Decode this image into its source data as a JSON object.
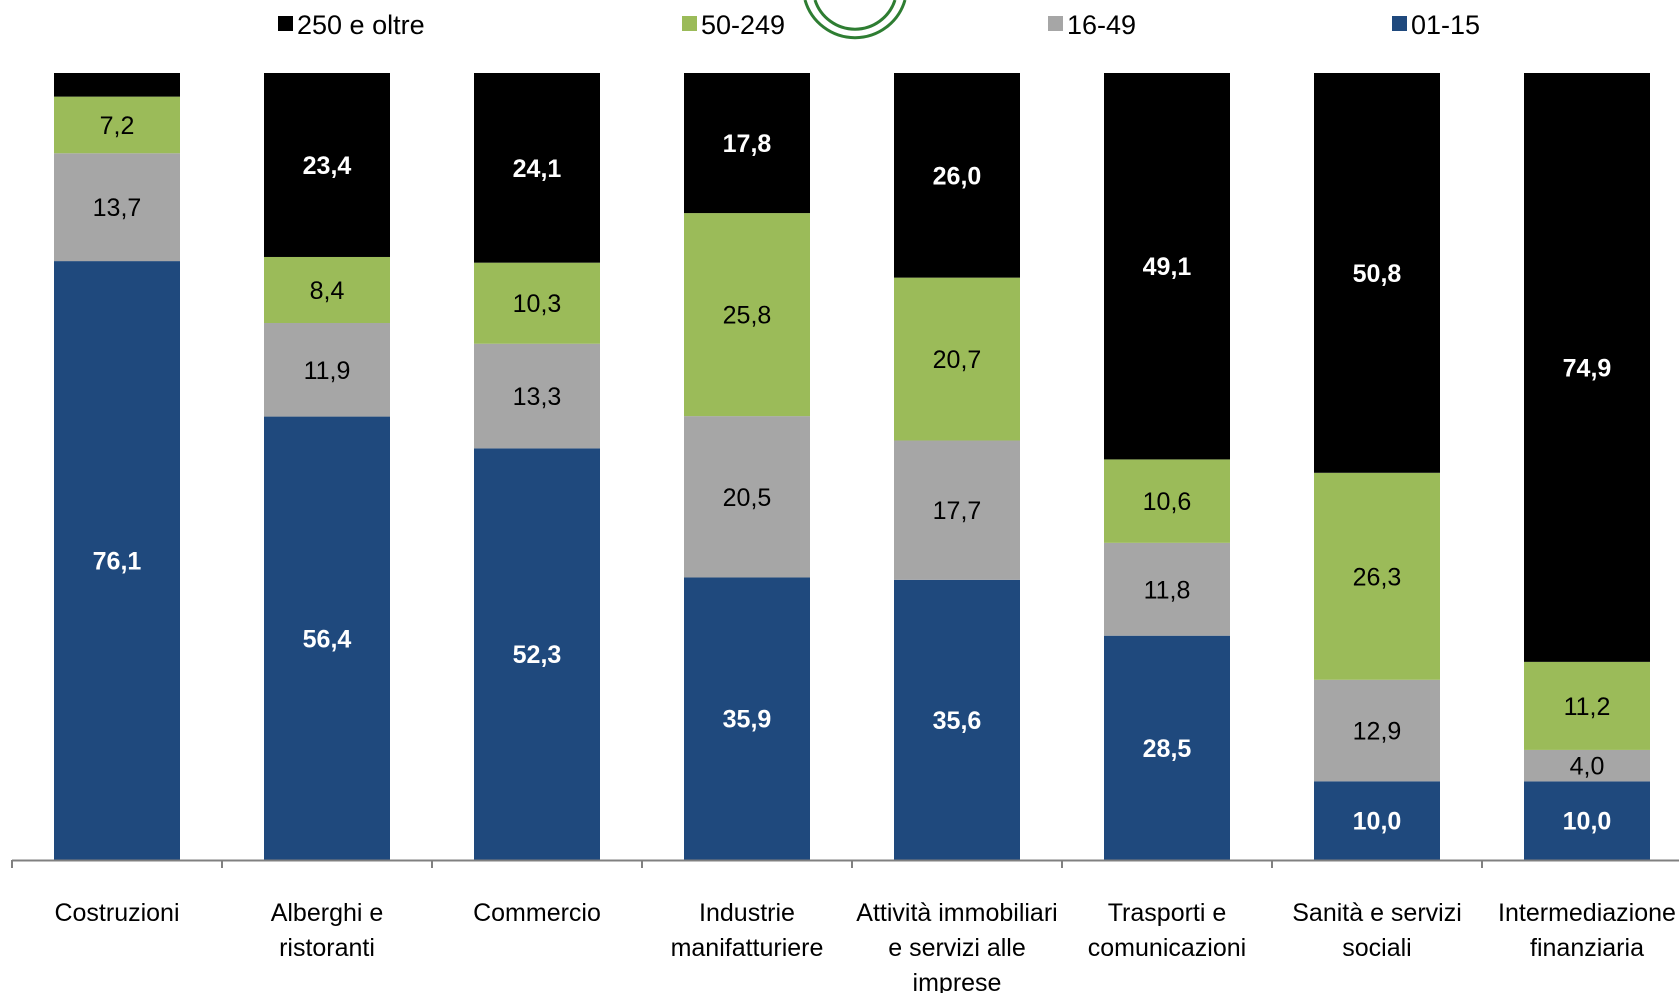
{
  "chart_data": {
    "type": "bar",
    "stacked": true,
    "normalized_percent": true,
    "ylim": [
      0,
      100
    ],
    "grid": false,
    "legend_position": "top",
    "categories": [
      [
        "Costruzioni"
      ],
      [
        "Alberghi e",
        "ristoranti"
      ],
      [
        "Commercio"
      ],
      [
        "Industrie",
        "manifatturiere"
      ],
      [
        "Attività immobiliari",
        "e servizi alle",
        "imprese"
      ],
      [
        "Trasporti e",
        "comunicazioni"
      ],
      [
        "Sanità e servizi",
        "sociali"
      ],
      [
        "Intermediazione",
        "finanziaria"
      ]
    ],
    "series": [
      {
        "name": "01-15",
        "color": "#1f497d",
        "label_color": "#ffffff",
        "label_bold": true,
        "values": [
          76.1,
          56.4,
          52.3,
          35.9,
          35.6,
          28.5,
          10.0,
          10.0
        ],
        "labels": [
          "76,1",
          "56,4",
          "52,3",
          "35,9",
          "35,6",
          "28,5",
          "10,0",
          "10,0"
        ]
      },
      {
        "name": "16-49",
        "color": "#a6a6a6",
        "label_color": "#000000",
        "label_bold": false,
        "values": [
          13.7,
          11.9,
          13.3,
          20.5,
          17.7,
          11.8,
          12.9,
          4.0
        ],
        "labels": [
          "13,7",
          "11,9",
          "13,3",
          "20,5",
          "17,7",
          "11,8",
          "12,9",
          "4,0"
        ]
      },
      {
        "name": "50-249",
        "color": "#9bbb59",
        "label_color": "#000000",
        "label_bold": false,
        "values": [
          7.2,
          8.4,
          10.3,
          25.8,
          20.7,
          10.6,
          26.3,
          11.2
        ],
        "labels": [
          "7,2",
          "8,4",
          "10,3",
          "25,8",
          "20,7",
          "10,6",
          "26,3",
          "11,2"
        ]
      },
      {
        "name": "250 e oltre",
        "color": "#000000",
        "label_color": "#ffffff",
        "label_bold": true,
        "values": [
          3.0,
          23.4,
          24.1,
          17.8,
          26.0,
          49.1,
          50.8,
          74.9
        ],
        "labels": [
          "",
          "23,4",
          "24,1",
          "17,8",
          "26,0",
          "49,1",
          "50,8",
          "74,9"
        ]
      }
    ],
    "legend_order": [
      "250 e oltre",
      "50-249",
      "16-49",
      "01-15"
    ]
  }
}
